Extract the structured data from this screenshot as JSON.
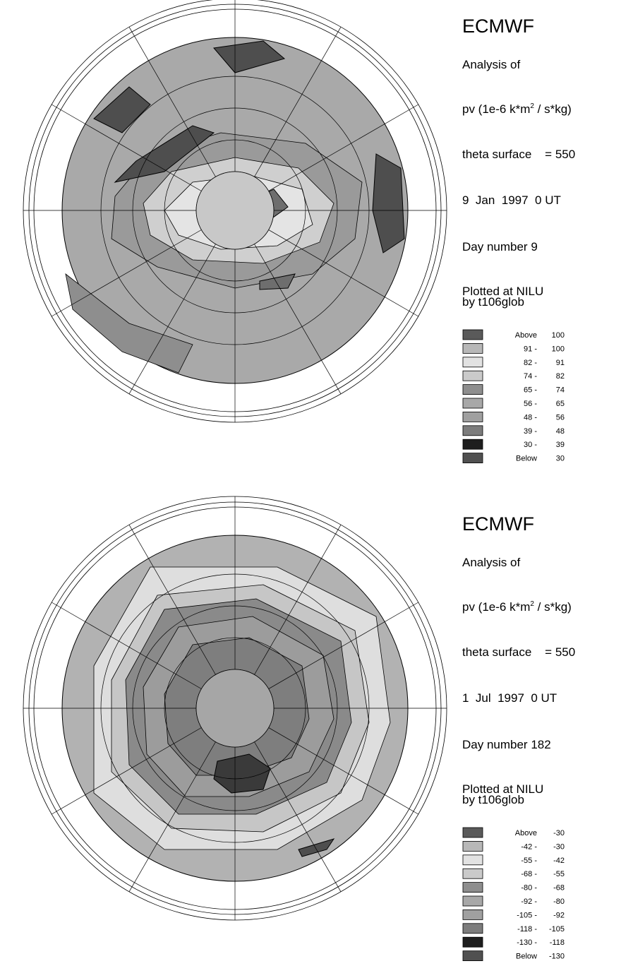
{
  "panels": [
    {
      "title": "ECMWF",
      "analysis": "Analysis of",
      "pv_prefix": "pv (1e-6 k*m",
      "pv_sup": "2",
      "pv_suffix": " / s*kg)",
      "theta": "theta surface    = 550",
      "date": "9  Jan  1997  0 UT",
      "day": "Day number 9",
      "plotted": "Plotted at NILU",
      "by": "by t106glob",
      "legend": [
        {
          "low": "Above",
          "high": "100",
          "color": "#5a5a5a"
        },
        {
          "low": "91 -",
          "high": "100",
          "color": "#b8b8b8"
        },
        {
          "low": "82 -",
          "high": "91",
          "color": "#e2e2e2"
        },
        {
          "low": "74 -",
          "high": "82",
          "color": "#cacaca"
        },
        {
          "low": "65 -",
          "high": "74",
          "color": "#8e8e8e"
        },
        {
          "low": "56 -",
          "high": "65",
          "color": "#a8a8a8"
        },
        {
          "low": "48 -",
          "high": "56",
          "color": "#a0a0a0"
        },
        {
          "low": "39 -",
          "high": "48",
          "color": "#7c7c7c"
        },
        {
          "low": "30 -",
          "high": "39",
          "color": "#1e1e1e"
        },
        {
          "low": "Below",
          "high": "30",
          "color": "#505050"
        }
      ]
    },
    {
      "title": "ECMWF",
      "analysis": "Analysis of",
      "pv_prefix": "pv (1e-6 k*m",
      "pv_sup": "2",
      "pv_suffix": " / s*kg)",
      "theta": "theta surface    = 550",
      "date": "1  Jul  1997  0 UT",
      "day": "Day number 182",
      "plotted": "Plotted at NILU",
      "by": "by t106glob",
      "legend": [
        {
          "low": "Above",
          "high": "-30",
          "color": "#5a5a5a"
        },
        {
          "low": "-42 -",
          "high": "-30",
          "color": "#b8b8b8"
        },
        {
          "low": "-55 -",
          "high": "-42",
          "color": "#e2e2e2"
        },
        {
          "low": "-68 -",
          "high": "-55",
          "color": "#cacaca"
        },
        {
          "low": "-80 -",
          "high": "-68",
          "color": "#8e8e8e"
        },
        {
          "low": "-92 -",
          "high": "-80",
          "color": "#a8a8a8"
        },
        {
          "low": "-105 -",
          "high": "-92",
          "color": "#a0a0a0"
        },
        {
          "low": "-118 -",
          "high": "-105",
          "color": "#7c7c7c"
        },
        {
          "low": "-130 -",
          "high": "-118",
          "color": "#1e1e1e"
        },
        {
          "low": "Below",
          "high": "-130",
          "color": "#505050"
        }
      ]
    }
  ]
}
